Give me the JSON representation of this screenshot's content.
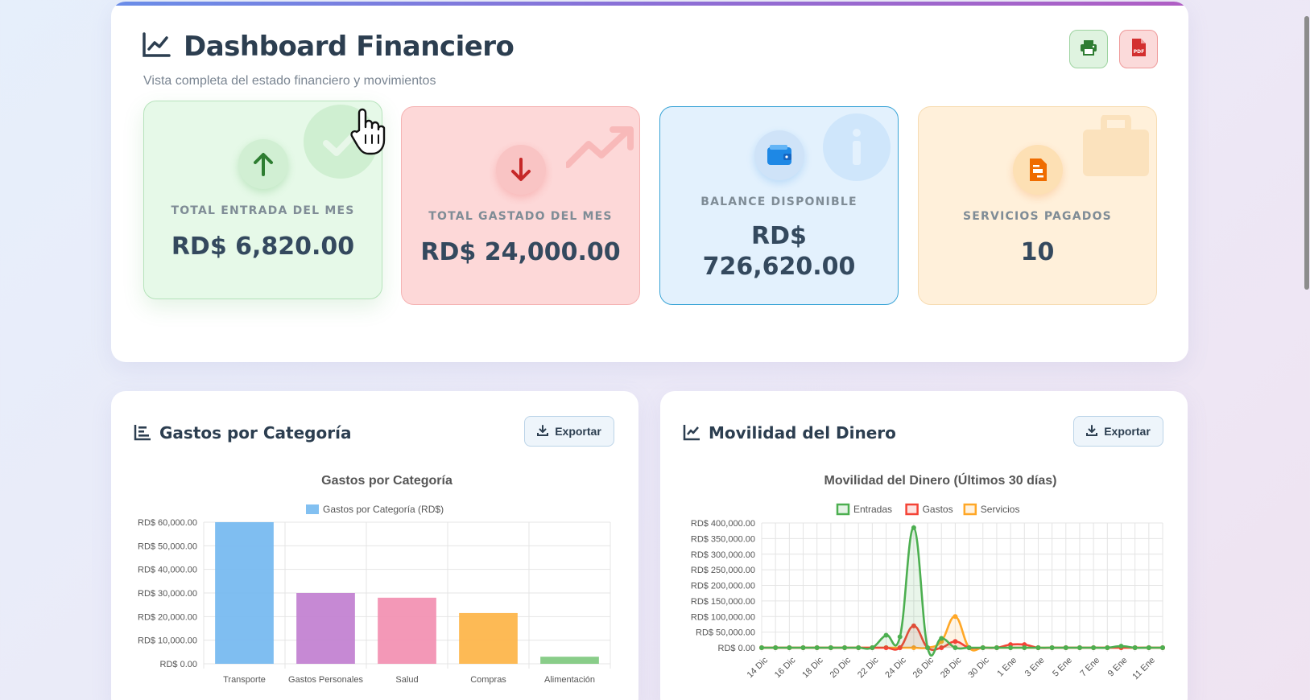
{
  "header": {
    "title": "Dashboard Financiero",
    "subtitle": "Vista completa del estado financiero y movimientos",
    "print_icon": "print-icon",
    "pdf_icon": "file-pdf-icon"
  },
  "stats": [
    {
      "label": "TOTAL ENTRADA DEL MES",
      "value": "RD$ 6,820.00",
      "icon": "arrow-up-icon",
      "color": "#2e7d32"
    },
    {
      "label": "TOTAL GASTADO DEL MES",
      "value": "RD$ 24,000.00",
      "icon": "arrow-down-icon",
      "color": "#c62828"
    },
    {
      "label": "BALANCE DISPONIBLE",
      "value_line1": "RD$",
      "value_line2": "726,620.00",
      "icon": "wallet-icon",
      "color": "#1e88e5"
    },
    {
      "label": "SERVICIOS PAGADOS",
      "value": "10",
      "icon": "file-invoice-icon",
      "color": "#ef6c00"
    }
  ],
  "panels": {
    "left": {
      "title": "Gastos por Categoría",
      "export_label": "Exportar"
    },
    "right": {
      "title": "Movilidad del Dinero",
      "export_label": "Exportar"
    }
  },
  "chart_data": [
    {
      "type": "bar",
      "title": "Gastos por Categoría",
      "legend": [
        "Gastos por Categoría (RD$)"
      ],
      "legend_position": "top",
      "categories": [
        "Transporte",
        "Gastos Personales",
        "Salud",
        "Compras",
        "Alimentación"
      ],
      "values": [
        60000,
        30000,
        28000,
        21500,
        3000
      ],
      "colors": [
        "#74b9f0",
        "#c17fd0",
        "#f28fb1",
        "#fdb447",
        "#7fc97f"
      ],
      "ylim": [
        0,
        60000
      ],
      "yticks": [
        "RD$ 0.00",
        "RD$ 10,000.00",
        "RD$ 20,000.00",
        "RD$ 30,000.00",
        "RD$ 40,000.00",
        "RD$ 50,000.00",
        "RD$ 60,000.00"
      ],
      "grid": true
    },
    {
      "type": "line",
      "title": "Movilidad del Dinero (Últimos 30 días)",
      "legend_position": "top",
      "x": [
        "14 Dic",
        "15 Dic",
        "16 Dic",
        "17 Dic",
        "18 Dic",
        "19 Dic",
        "20 Dic",
        "21 Dic",
        "22 Dic",
        "23 Dic",
        "24 Dic",
        "25 Dic",
        "26 Dic",
        "27 Dic",
        "28 Dic",
        "29 Dic",
        "30 Dic",
        "31 Dic",
        "1 Ene",
        "2 Ene",
        "3 Ene",
        "4 Ene",
        "5 Ene",
        "6 Ene",
        "7 Ene",
        "8 Ene",
        "9 Ene",
        "10 Ene",
        "11 Ene",
        "12 Ene"
      ],
      "x_tick_labels": [
        "14 Dic",
        "16 Dic",
        "18 Dic",
        "20 Dic",
        "22 Dic",
        "24 Dic",
        "26 Dic",
        "28 Dic",
        "30 Dic",
        "1 Ene",
        "3 Ene",
        "5 Ene",
        "7 Ene",
        "9 Ene",
        "11 Ene"
      ],
      "series": [
        {
          "name": "Entradas",
          "color": "#4caf50",
          "values": [
            0,
            0,
            0,
            0,
            0,
            0,
            0,
            0,
            0,
            40000,
            35000,
            385000,
            0,
            30000,
            0,
            0,
            0,
            0,
            0,
            0,
            0,
            0,
            0,
            0,
            0,
            0,
            5000,
            0,
            0,
            0
          ]
        },
        {
          "name": "Gastos",
          "color": "#f44336",
          "values": [
            0,
            0,
            0,
            0,
            0,
            0,
            0,
            0,
            0,
            0,
            0,
            70000,
            0,
            0,
            20000,
            0,
            0,
            0,
            10000,
            10000,
            0,
            0,
            0,
            0,
            0,
            0,
            0,
            0,
            0,
            0
          ]
        },
        {
          "name": "Servicios",
          "color": "#ffa726",
          "values": [
            0,
            0,
            0,
            0,
            0,
            0,
            0,
            0,
            0,
            0,
            0,
            0,
            0,
            20000,
            100000,
            0,
            0,
            0,
            0,
            0,
            0,
            0,
            0,
            0,
            0,
            0,
            0,
            0,
            0,
            0
          ]
        }
      ],
      "ylim": [
        0,
        400000
      ],
      "yticks": [
        "RD$ 0.00",
        "RD$ 50,000.00",
        "RD$ 100,000.00",
        "RD$ 150,000.00",
        "RD$ 200,000.00",
        "RD$ 250,000.00",
        "RD$ 300,000.00",
        "RD$ 350,000.00",
        "RD$ 400,000.00"
      ],
      "grid": true
    }
  ]
}
